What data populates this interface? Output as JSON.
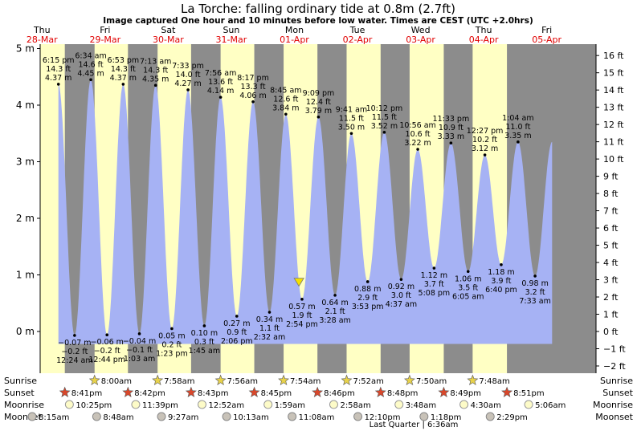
{
  "header": {
    "title": "La Torche: falling  ordinary tide at 0.8m (2.7ft)",
    "subtitle": "Image captured One hour and 10 minutes before low water. Times are CEST (UTC +2.0hrs)"
  },
  "chart_data": {
    "type": "area",
    "title": "La Torche: falling  ordinary tide at 0.8m (2.7ft)",
    "subtitle": "Image captured One hour and 10 minutes before low water. Times are CEST (UTC +2.0hrs)",
    "colors": {
      "tide_fill": "#a6b2f4",
      "day": "#ffffc4",
      "night": "#8c8c8c",
      "date_text": "#e00000",
      "marker": "#f4e000"
    },
    "days": [
      {
        "day": "Thu",
        "date": "28-Mar"
      },
      {
        "day": "Fri",
        "date": "29-Mar"
      },
      {
        "day": "Sat",
        "date": "30-Mar"
      },
      {
        "day": "Sun",
        "date": "31-Mar"
      },
      {
        "day": "Mon",
        "date": "01-Apr"
      },
      {
        "day": "Tue",
        "date": "02-Apr"
      },
      {
        "day": "Wed",
        "date": "03-Apr"
      },
      {
        "day": "Thu",
        "date": "04-Apr"
      },
      {
        "day": "Fri",
        "date": "05-Apr"
      }
    ],
    "y_left": {
      "unit": "m",
      "min": -0.75,
      "max": 5.2,
      "ticks": [
        0,
        1,
        2,
        3,
        4,
        5
      ],
      "tick_labels": [
        "0 m",
        "1 m",
        "2 m",
        "3 m",
        "4 m",
        "5 m"
      ]
    },
    "y_right": {
      "unit": "ft",
      "ticks": [
        -2,
        -1,
        0,
        1,
        2,
        3,
        4,
        5,
        6,
        7,
        8,
        9,
        10,
        11,
        12,
        13,
        14,
        15,
        16
      ],
      "tick_labels": [
        "−2 ft",
        "−1 ft",
        "0 ft",
        "1 ft",
        "2 ft",
        "3 ft",
        "4 ft",
        "5 ft",
        "6 ft",
        "7 ft",
        "8 ft",
        "9 ft",
        "10 ft",
        "11 ft",
        "12 ft",
        "13 ft",
        "14 ft",
        "15 ft",
        "16 ft"
      ]
    },
    "tides": [
      {
        "type": "high",
        "time": "6:15 pm",
        "ft": "14.3 ft",
        "m": "4.37 m",
        "date": "28-Mar",
        "clock": "18:15",
        "value": 4.37
      },
      {
        "type": "low",
        "time": "12:24 am",
        "ft": "−0.2 ft",
        "m": "−0.07 m",
        "date": "29-Mar",
        "clock": "00:24",
        "value": -0.07
      },
      {
        "type": "high",
        "time": "6:34 am",
        "ft": "14.6 ft",
        "m": "4.45 m",
        "date": "29-Mar",
        "clock": "06:34",
        "value": 4.45
      },
      {
        "type": "low",
        "time": "12:44 pm",
        "ft": "−0.2 ft",
        "m": "−0.06 m",
        "date": "29-Mar",
        "clock": "12:44",
        "value": -0.06
      },
      {
        "type": "high",
        "time": "6:53 pm",
        "ft": "14.3 ft",
        "m": "4.37 m",
        "date": "29-Mar",
        "clock": "18:53",
        "value": 4.37
      },
      {
        "type": "low",
        "time": "1:03 am",
        "ft": "−0.1 ft",
        "m": "−0.04 m",
        "date": "30-Mar",
        "clock": "01:03",
        "value": -0.04
      },
      {
        "type": "high",
        "time": "7:13 am",
        "ft": "14.3 ft",
        "m": "4.35 m",
        "date": "30-Mar",
        "clock": "07:13",
        "value": 4.35
      },
      {
        "type": "low",
        "time": "1:23 pm",
        "ft": "0.2 ft",
        "m": "0.05 m",
        "date": "30-Mar",
        "clock": "13:23",
        "value": 0.05
      },
      {
        "type": "high",
        "time": "7:33 pm",
        "ft": "14.0 ft",
        "m": "4.27 m",
        "date": "30-Mar",
        "clock": "19:33",
        "value": 4.27
      },
      {
        "type": "low",
        "time": "1:45 am",
        "ft": "0.3 ft",
        "m": "0.10 m",
        "date": "31-Mar",
        "clock": "01:45",
        "value": 0.1
      },
      {
        "type": "high",
        "time": "7:56 am",
        "ft": "13.6 ft",
        "m": "4.14 m",
        "date": "31-Mar",
        "clock": "07:56",
        "value": 4.14
      },
      {
        "type": "low",
        "time": "2:06 pm",
        "ft": "0.9 ft",
        "m": "0.27 m",
        "date": "31-Mar",
        "clock": "14:06",
        "value": 0.27
      },
      {
        "type": "high",
        "time": "8:17 pm",
        "ft": "13.3 ft",
        "m": "4.06 m",
        "date": "31-Mar",
        "clock": "20:17",
        "value": 4.06
      },
      {
        "type": "low",
        "time": "2:32 am",
        "ft": "1.1 ft",
        "m": "0.34 m",
        "date": "01-Apr",
        "clock": "02:32",
        "value": 0.34
      },
      {
        "type": "high",
        "time": "8:45 am",
        "ft": "12.6 ft",
        "m": "3.84 m",
        "date": "01-Apr",
        "clock": "08:45",
        "value": 3.84
      },
      {
        "type": "low",
        "time": "2:54 pm",
        "ft": "1.9 ft",
        "m": "0.57 m",
        "date": "01-Apr",
        "clock": "14:54",
        "value": 0.57
      },
      {
        "type": "high",
        "time": "9:09 pm",
        "ft": "12.4 ft",
        "m": "3.79 m",
        "date": "01-Apr",
        "clock": "21:09",
        "value": 3.79
      },
      {
        "type": "low",
        "time": "3:28 am",
        "ft": "2.1 ft",
        "m": "0.64 m",
        "date": "02-Apr",
        "clock": "03:28",
        "value": 0.64
      },
      {
        "type": "high",
        "time": "9:41 am",
        "ft": "11.5 ft",
        "m": "3.50 m",
        "date": "02-Apr",
        "clock": "09:41",
        "value": 3.5
      },
      {
        "type": "low",
        "time": "3:53 pm",
        "ft": "2.9 ft",
        "m": "0.88 m",
        "date": "02-Apr",
        "clock": "15:53",
        "value": 0.88
      },
      {
        "type": "high",
        "time": "10:12 pm",
        "ft": "11.5 ft",
        "m": "3.52 m",
        "date": "02-Apr",
        "clock": "22:12",
        "value": 3.52
      },
      {
        "type": "low",
        "time": "4:37 am",
        "ft": "3.0 ft",
        "m": "0.92 m",
        "date": "03-Apr",
        "clock": "04:37",
        "value": 0.92
      },
      {
        "type": "high",
        "time": "10:56 am",
        "ft": "10.6 ft",
        "m": "3.22 m",
        "date": "03-Apr",
        "clock": "10:56",
        "value": 3.22
      },
      {
        "type": "low",
        "time": "5:08 pm",
        "ft": "3.7 ft",
        "m": "1.12 m",
        "date": "03-Apr",
        "clock": "17:08",
        "value": 1.12
      },
      {
        "type": "high",
        "time": "11:33 pm",
        "ft": "10.9 ft",
        "m": "3.33 m",
        "date": "03-Apr",
        "clock": "23:33",
        "value": 3.33
      },
      {
        "type": "low",
        "time": "6:05 am",
        "ft": "3.5 ft",
        "m": "1.06 m",
        "date": "04-Apr",
        "clock": "06:05",
        "value": 1.06
      },
      {
        "type": "high",
        "time": "12:27 pm",
        "ft": "10.2 ft",
        "m": "3.12 m",
        "date": "04-Apr",
        "clock": "12:27",
        "value": 3.12
      },
      {
        "type": "low",
        "time": "6:40 pm",
        "ft": "3.9 ft",
        "m": "1.18 m",
        "date": "04-Apr",
        "clock": "18:40",
        "value": 1.18
      },
      {
        "type": "high",
        "time": "1:04 am",
        "ft": "11.0 ft",
        "m": "3.35 m",
        "date": "05-Apr",
        "clock": "01:04",
        "value": 3.35
      },
      {
        "type": "low",
        "time": "7:33 am",
        "ft": "3.2 ft",
        "m": "0.98 m",
        "date": "05-Apr",
        "clock": "07:33",
        "value": 0.98
      }
    ],
    "current": {
      "date": "01-Apr",
      "clock": "13:44",
      "value": 0.8
    },
    "astro": {
      "labels": {
        "sunrise": "Sunrise",
        "sunset": "Sunset",
        "moonrise": "Moonrise",
        "moonset": "Moonset"
      },
      "sunrise": [
        {
          "date": "29-Mar",
          "clock": "08:00",
          "time": "8:00am"
        },
        {
          "date": "30-Mar",
          "clock": "07:58",
          "time": "7:58am"
        },
        {
          "date": "31-Mar",
          "clock": "07:56",
          "time": "7:56am"
        },
        {
          "date": "01-Apr",
          "clock": "07:54",
          "time": "7:54am"
        },
        {
          "date": "02-Apr",
          "clock": "07:52",
          "time": "7:52am"
        },
        {
          "date": "03-Apr",
          "clock": "07:50",
          "time": "7:50am"
        },
        {
          "date": "04-Apr",
          "clock": "07:48",
          "time": "7:48am"
        }
      ],
      "sunset": [
        {
          "date": "28-Mar",
          "clock": "20:41",
          "time": "8:41pm"
        },
        {
          "date": "29-Mar",
          "clock": "20:42",
          "time": "8:42pm"
        },
        {
          "date": "30-Mar",
          "clock": "20:43",
          "time": "8:43pm"
        },
        {
          "date": "31-Mar",
          "clock": "20:45",
          "time": "8:45pm"
        },
        {
          "date": "01-Apr",
          "clock": "20:46",
          "time": "8:46pm"
        },
        {
          "date": "02-Apr",
          "clock": "20:48",
          "time": "8:48pm"
        },
        {
          "date": "03-Apr",
          "clock": "20:49",
          "time": "8:49pm"
        },
        {
          "date": "04-Apr",
          "clock": "20:51",
          "time": "8:51pm"
        }
      ],
      "moonrise": [
        {
          "date": "28-Mar",
          "clock": "22:25",
          "time": "10:25pm"
        },
        {
          "date": "29-Mar",
          "clock": "23:39",
          "time": "11:39pm"
        },
        {
          "date": "31-Mar",
          "clock": "00:52",
          "time": "12:52am"
        },
        {
          "date": "01-Apr",
          "clock": "01:59",
          "time": "1:59am"
        },
        {
          "date": "02-Apr",
          "clock": "02:58",
          "time": "2:58am"
        },
        {
          "date": "03-Apr",
          "clock": "03:48",
          "time": "3:48am"
        },
        {
          "date": "04-Apr",
          "clock": "04:30",
          "time": "4:30am"
        },
        {
          "date": "05-Apr",
          "clock": "05:06",
          "time": "5:06am"
        }
      ],
      "moonset": [
        {
          "date": "28-Mar",
          "clock": "08:15",
          "time": "8:15am"
        },
        {
          "date": "29-Mar",
          "clock": "08:48",
          "time": "8:48am"
        },
        {
          "date": "30-Mar",
          "clock": "09:27",
          "time": "9:27am"
        },
        {
          "date": "31-Mar",
          "clock": "10:13",
          "time": "10:13am"
        },
        {
          "date": "01-Apr",
          "clock": "11:08",
          "time": "11:08am"
        },
        {
          "date": "02-Apr",
          "clock": "12:10",
          "time": "12:10pm"
        },
        {
          "date": "03-Apr",
          "clock": "13:18",
          "time": "1:18pm"
        },
        {
          "date": "04-Apr",
          "clock": "14:29",
          "time": "2:29pm"
        }
      ],
      "moon_phase": "Last Quarter | 6:36am"
    }
  }
}
